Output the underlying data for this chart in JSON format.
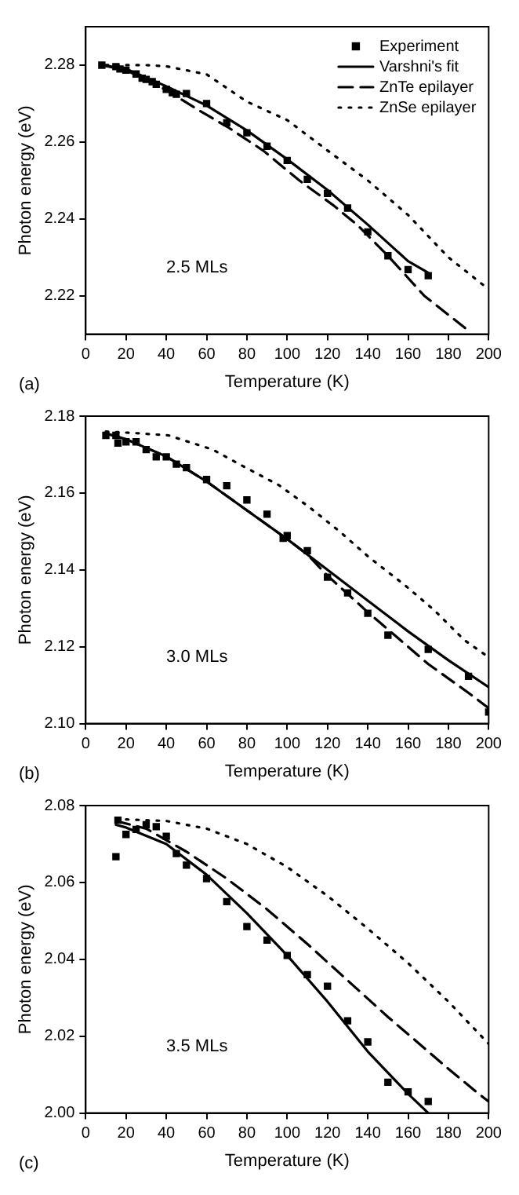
{
  "chart_data": [
    {
      "type": "scatter",
      "xlabel": "Temperature (K)",
      "ylabel": "Photon energy (eV)",
      "xlim": [
        0,
        200
      ],
      "ylim": [
        2.21,
        2.29
      ],
      "xticks": [
        0,
        20,
        40,
        60,
        80,
        100,
        120,
        140,
        160,
        180,
        200
      ],
      "yticks": [
        {
          "value": 2.22,
          "label": "2.22"
        },
        {
          "value": 2.24,
          "label": "2.24"
        },
        {
          "value": 2.26,
          "label": "2.26"
        },
        {
          "value": 2.28,
          "label": "2.28"
        }
      ],
      "legend": "top right",
      "annotations": [
        "2.5 MLs",
        "(a)"
      ],
      "series": [
        {
          "name": "Experiment",
          "marker": "square",
          "color": "#000000",
          "x": [
            8,
            15,
            17,
            20,
            25,
            28,
            30,
            33,
            35,
            40,
            43,
            45,
            50,
            60,
            70,
            80,
            90,
            100,
            110,
            120,
            130,
            140,
            150,
            160,
            170
          ],
          "values": [
            2.28,
            2.2796,
            2.279,
            2.2787,
            2.2777,
            2.2766,
            2.2763,
            2.2757,
            2.275,
            2.2737,
            2.2728,
            2.2724,
            2.2726,
            2.27,
            2.265,
            2.2624,
            2.2589,
            2.2552,
            2.2503,
            2.2466,
            2.2428,
            2.2366,
            2.2304,
            2.2268,
            2.2252
          ]
        },
        {
          "name": "Varshni's fit",
          "type": "line",
          "marker": "none",
          "line_style": "solid",
          "color": "#000000",
          "x": [
            8,
            20,
            40,
            60,
            80,
            100,
            120,
            140,
            160,
            170
          ],
          "values": [
            2.28,
            2.279,
            2.2745,
            2.2695,
            2.263,
            2.2555,
            2.2475,
            2.2385,
            2.229,
            2.226
          ]
        },
        {
          "name": "ZnTe epilayer",
          "type": "line",
          "marker": "none",
          "line_style": "dashed",
          "color": "#000000",
          "x": [
            8,
            20,
            40,
            56,
            71,
            88,
            106,
            123,
            135,
            150,
            168,
            190
          ],
          "values": [
            2.28,
            2.2787,
            2.2735,
            2.2683,
            2.2637,
            2.2578,
            2.25,
            2.2435,
            2.2383,
            2.2304,
            2.22,
            2.2109
          ]
        },
        {
          "name": "ZnSe epilayer",
          "type": "line",
          "marker": "none",
          "line_style": "dotted",
          "color": "#000000",
          "x": [
            10,
            30,
            40,
            60,
            80,
            100,
            120,
            140,
            160,
            180,
            198
          ],
          "values": [
            2.28,
            2.28,
            2.2797,
            2.2776,
            2.2705,
            2.2657,
            2.2578,
            2.25,
            2.241,
            2.23,
            2.2225
          ]
        }
      ]
    },
    {
      "type": "scatter",
      "xlabel": "Temperature (K)",
      "ylabel": "Photon energy (eV)",
      "xlim": [
        0,
        200
      ],
      "ylim": [
        2.1,
        2.18
      ],
      "xticks": [
        0,
        20,
        40,
        60,
        80,
        100,
        120,
        140,
        160,
        180,
        200
      ],
      "yticks": [
        {
          "value": 2.1,
          "label": "2.10"
        },
        {
          "value": 2.12,
          "label": "2.12"
        },
        {
          "value": 2.14,
          "label": "2.14"
        },
        {
          "value": 2.16,
          "label": "2.16"
        },
        {
          "value": 2.18,
          "label": "2.18"
        }
      ],
      "annotations": [
        "3.0 MLs",
        "(b)"
      ],
      "series": [
        {
          "marker": "square",
          "color": "#000000",
          "x": [
            10,
            15,
            16,
            20,
            25,
            30,
            35,
            40,
            45,
            50,
            60,
            70,
            80,
            90,
            98,
            100,
            110,
            120,
            130,
            140,
            150,
            170,
            190,
            200
          ],
          "values": [
            2.175,
            2.175,
            2.173,
            2.1733,
            2.1733,
            2.1713,
            2.1694,
            2.1694,
            2.1675,
            2.1666,
            2.1635,
            2.1619,
            2.1582,
            2.1545,
            2.1482,
            2.1489,
            2.145,
            2.1381,
            2.134,
            2.1287,
            2.123,
            2.1193,
            2.1123,
            2.103
          ]
        },
        {
          "type": "line",
          "marker": "none",
          "line_style": "solid",
          "color": "#000000",
          "x": [
            10,
            20,
            40,
            60,
            80,
            100,
            120,
            140,
            160,
            180,
            200
          ],
          "values": [
            2.1755,
            2.174,
            2.1695,
            2.163,
            2.1555,
            2.148,
            2.14,
            2.132,
            2.124,
            2.1165,
            2.1095
          ]
        },
        {
          "type": "line",
          "marker": "none",
          "line_style": "dashed",
          "color": "#000000",
          "x": [
            10,
            20,
            40,
            60,
            80,
            100,
            110,
            120,
            140,
            150,
            170,
            190,
            200
          ],
          "values": [
            2.1755,
            2.174,
            2.1695,
            2.163,
            2.1555,
            2.148,
            2.144,
            2.1385,
            2.129,
            2.1245,
            2.1155,
            2.108,
            2.104
          ]
        },
        {
          "type": "line",
          "marker": "none",
          "line_style": "dotted",
          "color": "#000000",
          "x": [
            10,
            24,
            41,
            63,
            78,
            96,
            111,
            126,
            141,
            158,
            173,
            188,
            198
          ],
          "values": [
            2.176,
            2.1756,
            2.175,
            2.1713,
            2.167,
            2.162,
            2.1563,
            2.15,
            2.1431,
            2.1362,
            2.1295,
            2.1217,
            2.118
          ]
        }
      ]
    },
    {
      "type": "scatter",
      "xlabel": "Temperature (K)",
      "ylabel": "Photon energy (eV)",
      "xlim": [
        0,
        200
      ],
      "ylim": [
        2.0,
        2.08
      ],
      "xticks": [
        0,
        20,
        40,
        60,
        80,
        100,
        120,
        140,
        160,
        180,
        200
      ],
      "yticks": [
        {
          "value": 2.0,
          "label": "2.00"
        },
        {
          "value": 2.02,
          "label": "2.02"
        },
        {
          "value": 2.04,
          "label": "2.04"
        },
        {
          "value": 2.06,
          "label": "2.06"
        },
        {
          "value": 2.08,
          "label": "2.08"
        }
      ],
      "annotations": [
        "3.5 MLs",
        "(c)"
      ],
      "series": [
        {
          "marker": "square",
          "color": "#000000",
          "x": [
            15,
            16,
            20,
            25,
            30,
            35,
            40,
            45,
            50,
            60,
            70,
            80,
            90,
            100,
            110,
            120,
            130,
            140,
            150,
            160,
            170
          ],
          "values": [
            2.0667,
            2.0762,
            2.0725,
            2.0738,
            2.075,
            2.0745,
            2.072,
            2.0675,
            2.0645,
            2.061,
            2.055,
            2.0485,
            2.045,
            2.041,
            2.036,
            2.033,
            2.024,
            2.0185,
            2.008,
            2.0055,
            2.003
          ]
        },
        {
          "type": "line",
          "marker": "none",
          "line_style": "solid",
          "color": "#000000",
          "x": [
            15,
            20,
            40,
            60,
            80,
            100,
            120,
            140,
            160,
            170
          ],
          "values": [
            2.075,
            2.0743,
            2.07,
            2.062,
            2.052,
            2.041,
            2.029,
            2.016,
            2.005,
            2.0
          ]
        },
        {
          "type": "line",
          "marker": "none",
          "line_style": "dashed",
          "color": "#000000",
          "x": [
            15,
            30,
            50,
            70,
            90,
            110,
            130,
            150,
            170,
            180,
            195,
            200
          ],
          "values": [
            2.076,
            2.074,
            2.068,
            2.061,
            2.053,
            2.044,
            2.0345,
            2.025,
            2.016,
            2.0115,
            2.005,
            2.003
          ]
        },
        {
          "type": "line",
          "marker": "none",
          "line_style": "dotted",
          "color": "#000000",
          "x": [
            15,
            40,
            60,
            80,
            100,
            120,
            140,
            160,
            180,
            200
          ],
          "values": [
            2.0765,
            2.076,
            2.074,
            2.07,
            2.064,
            2.0565,
            2.048,
            2.039,
            2.029,
            2.018
          ]
        }
      ]
    }
  ]
}
